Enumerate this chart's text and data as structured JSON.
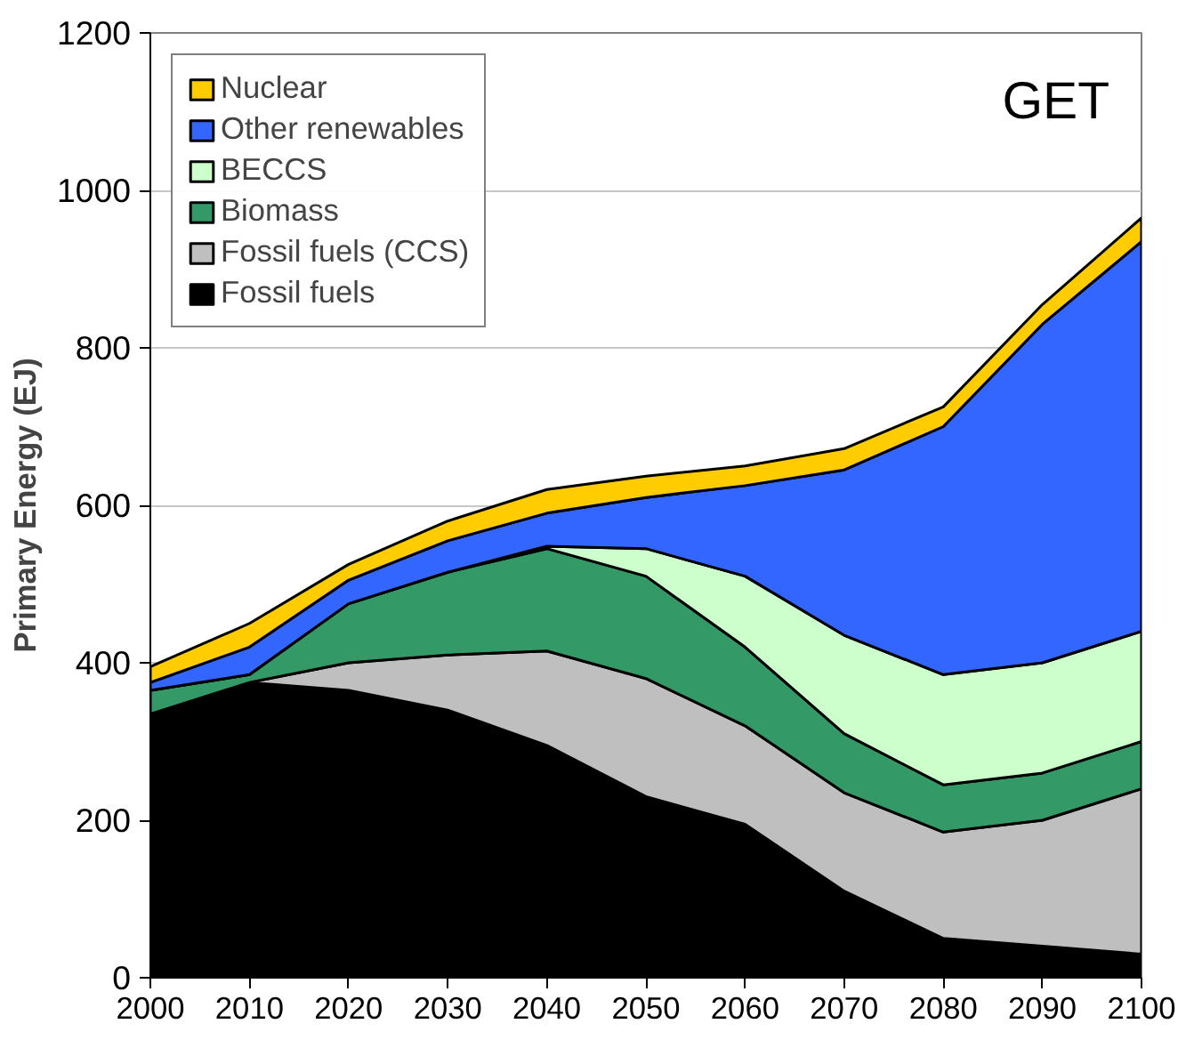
{
  "chart_data": {
    "type": "area",
    "stacked": true,
    "ylabel": "Primary Energy (EJ)",
    "annotations": [
      "GET"
    ],
    "x": [
      2000,
      2010,
      2020,
      2030,
      2040,
      2050,
      2060,
      2070,
      2080,
      2090,
      2100
    ],
    "xlim": [
      2000,
      2100
    ],
    "xticks": [
      2000,
      2010,
      2020,
      2030,
      2040,
      2050,
      2060,
      2070,
      2080,
      2090,
      2100
    ],
    "ylim": [
      0,
      1200
    ],
    "yticks": [
      0,
      200,
      400,
      600,
      800,
      1000,
      1200
    ],
    "grid": "y",
    "legend": "top left",
    "series": [
      {
        "name": "Fossil fuels",
        "color": "#000000",
        "values": [
          335,
          375,
          365,
          340,
          295,
          230,
          195,
          110,
          50,
          40,
          30
        ]
      },
      {
        "name": "Fossil fuels (CCS)",
        "color": "#bfbfbf",
        "values": [
          0,
          0,
          35,
          70,
          120,
          150,
          125,
          125,
          135,
          160,
          210
        ]
      },
      {
        "name": "Biomass",
        "color": "#339966",
        "values": [
          30,
          10,
          75,
          105,
          130,
          130,
          100,
          75,
          60,
          60,
          60
        ]
      },
      {
        "name": "BECCS",
        "color": "#ccffcc",
        "values": [
          0,
          0,
          0,
          0,
          3,
          35,
          90,
          125,
          140,
          140,
          140
        ]
      },
      {
        "name": "Other renewables",
        "color": "#3366ff",
        "values": [
          10,
          35,
          30,
          40,
          42,
          65,
          115,
          210,
          315,
          430,
          495
        ]
      },
      {
        "name": "Nuclear",
        "color": "#ffcc00",
        "values": [
          20,
          30,
          20,
          25,
          30,
          27,
          25,
          27,
          25,
          25,
          30
        ]
      }
    ]
  }
}
